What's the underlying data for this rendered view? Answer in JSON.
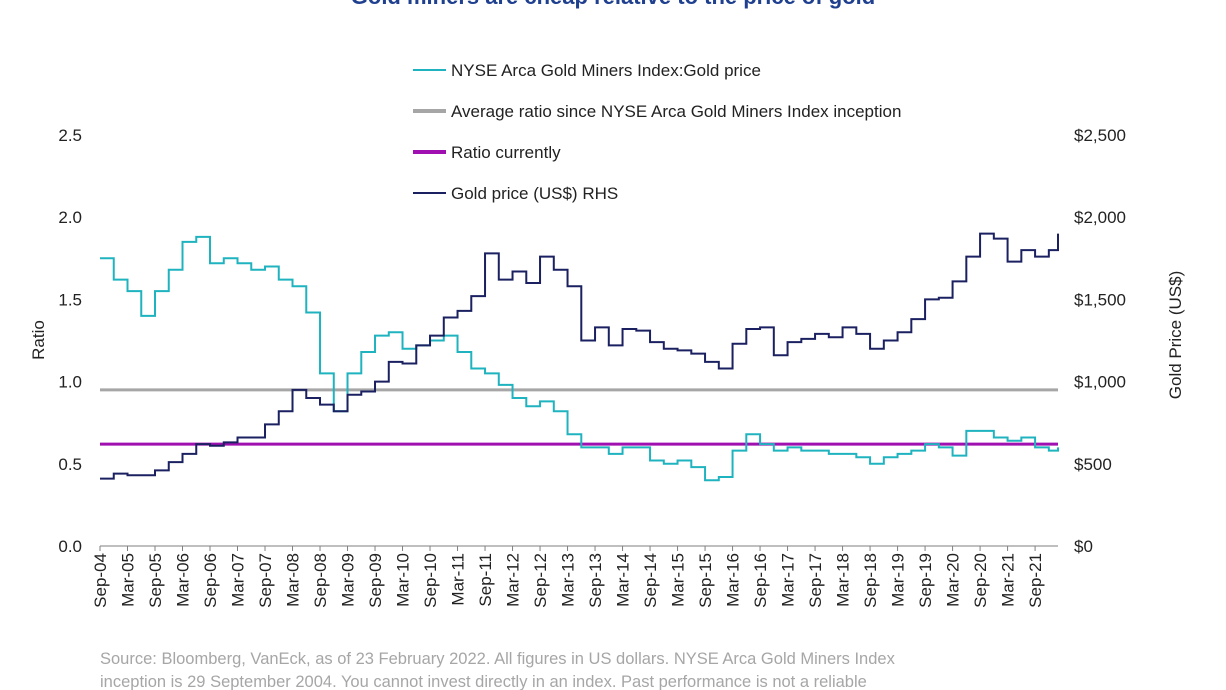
{
  "chart_data": {
    "type": "line",
    "title": "Gold miners are cheap relative to the price of gold",
    "ylabel_left": "Ratio",
    "ylabel_right": "Gold Price (US$)",
    "ylim_left": [
      0,
      2.5
    ],
    "ylim_right": [
      0,
      2500
    ],
    "yticks_left": [
      "0.0",
      "0.5",
      "1.0",
      "1.5",
      "2.0",
      "2.5"
    ],
    "yticks_right": [
      "$0",
      "$500",
      "$1,000",
      "$1,500",
      "$2,000",
      "$2,500"
    ],
    "xticks": [
      "Sep-04",
      "Mar-05",
      "Sep-05",
      "Mar-06",
      "Sep-06",
      "Mar-07",
      "Sep-07",
      "Mar-08",
      "Sep-08",
      "Mar-09",
      "Sep-09",
      "Mar-10",
      "Sep-10",
      "Mar-11",
      "Sep-11",
      "Mar-12",
      "Sep-12",
      "Mar-13",
      "Sep-13",
      "Mar-14",
      "Sep-14",
      "Mar-15",
      "Sep-15",
      "Mar-16",
      "Sep-16",
      "Mar-17",
      "Sep-17",
      "Mar-18",
      "Sep-18",
      "Mar-19",
      "Sep-19",
      "Mar-20",
      "Sep-20",
      "Mar-21",
      "Sep-21"
    ],
    "x_range": [
      "Sep-04",
      "Feb-22"
    ],
    "legend_position": "top-center",
    "series": [
      {
        "name": "NYSE Arca Gold Miners Index:Gold price",
        "axis": "left",
        "color": "#1fb3bf",
        "step": "quarter-year",
        "points": [
          [
            "Sep-04",
            1.75
          ],
          [
            "Dec-04",
            1.62
          ],
          [
            "Mar-05",
            1.55
          ],
          [
            "Jun-05",
            1.4
          ],
          [
            "Sep-05",
            1.55
          ],
          [
            "Dec-05",
            1.68
          ],
          [
            "Mar-06",
            1.85
          ],
          [
            "Jun-06",
            1.88
          ],
          [
            "Sep-06",
            1.72
          ],
          [
            "Dec-06",
            1.75
          ],
          [
            "Mar-07",
            1.72
          ],
          [
            "Jun-07",
            1.68
          ],
          [
            "Sep-07",
            1.7
          ],
          [
            "Dec-07",
            1.62
          ],
          [
            "Mar-08",
            1.58
          ],
          [
            "Jun-08",
            1.42
          ],
          [
            "Sep-08",
            1.05
          ],
          [
            "Dec-08",
            0.82
          ],
          [
            "Mar-09",
            1.05
          ],
          [
            "Jun-09",
            1.18
          ],
          [
            "Sep-09",
            1.28
          ],
          [
            "Dec-09",
            1.3
          ],
          [
            "Mar-10",
            1.2
          ],
          [
            "Jun-10",
            1.22
          ],
          [
            "Sep-10",
            1.25
          ],
          [
            "Dec-10",
            1.28
          ],
          [
            "Mar-11",
            1.18
          ],
          [
            "Jun-11",
            1.08
          ],
          [
            "Sep-11",
            1.05
          ],
          [
            "Dec-11",
            0.98
          ],
          [
            "Mar-12",
            0.9
          ],
          [
            "Jun-12",
            0.85
          ],
          [
            "Sep-12",
            0.88
          ],
          [
            "Dec-12",
            0.82
          ],
          [
            "Mar-13",
            0.68
          ],
          [
            "Jun-13",
            0.6
          ],
          [
            "Sep-13",
            0.6
          ],
          [
            "Dec-13",
            0.56
          ],
          [
            "Mar-14",
            0.6
          ],
          [
            "Jun-14",
            0.6
          ],
          [
            "Sep-14",
            0.52
          ],
          [
            "Dec-14",
            0.5
          ],
          [
            "Mar-15",
            0.52
          ],
          [
            "Jun-15",
            0.48
          ],
          [
            "Sep-15",
            0.4
          ],
          [
            "Dec-15",
            0.42
          ],
          [
            "Mar-16",
            0.58
          ],
          [
            "Jun-16",
            0.68
          ],
          [
            "Sep-16",
            0.62
          ],
          [
            "Dec-16",
            0.58
          ],
          [
            "Mar-17",
            0.6
          ],
          [
            "Jun-17",
            0.58
          ],
          [
            "Sep-17",
            0.58
          ],
          [
            "Dec-17",
            0.56
          ],
          [
            "Mar-18",
            0.56
          ],
          [
            "Jun-18",
            0.54
          ],
          [
            "Sep-18",
            0.5
          ],
          [
            "Dec-18",
            0.54
          ],
          [
            "Mar-19",
            0.56
          ],
          [
            "Jun-19",
            0.58
          ],
          [
            "Sep-19",
            0.62
          ],
          [
            "Dec-19",
            0.6
          ],
          [
            "Mar-20",
            0.55
          ],
          [
            "Jun-20",
            0.7
          ],
          [
            "Sep-20",
            0.7
          ],
          [
            "Dec-20",
            0.66
          ],
          [
            "Mar-21",
            0.64
          ],
          [
            "Jun-21",
            0.66
          ],
          [
            "Sep-21",
            0.6
          ],
          [
            "Dec-21",
            0.58
          ],
          [
            "Feb-22",
            0.6
          ]
        ]
      },
      {
        "name": "Average ratio since NYSE Arca Gold Miners Index inception",
        "axis": "left",
        "color": "#a6a6a6",
        "value": 0.95
      },
      {
        "name": "Ratio currently",
        "axis": "left",
        "color": "#a010b0",
        "value": 0.62
      },
      {
        "name": "Gold price (US$) RHS",
        "axis": "right",
        "color": "#1a2060",
        "step": "quarter-year",
        "points": [
          [
            "Sep-04",
            410
          ],
          [
            "Dec-04",
            440
          ],
          [
            "Mar-05",
            430
          ],
          [
            "Jun-05",
            430
          ],
          [
            "Sep-05",
            460
          ],
          [
            "Dec-05",
            510
          ],
          [
            "Mar-06",
            560
          ],
          [
            "Jun-06",
            620
          ],
          [
            "Sep-06",
            610
          ],
          [
            "Dec-06",
            630
          ],
          [
            "Mar-07",
            660
          ],
          [
            "Jun-07",
            660
          ],
          [
            "Sep-07",
            740
          ],
          [
            "Dec-07",
            820
          ],
          [
            "Mar-08",
            950
          ],
          [
            "Jun-08",
            900
          ],
          [
            "Sep-08",
            860
          ],
          [
            "Dec-08",
            820
          ],
          [
            "Mar-09",
            920
          ],
          [
            "Jun-09",
            940
          ],
          [
            "Sep-09",
            1000
          ],
          [
            "Dec-09",
            1120
          ],
          [
            "Mar-10",
            1110
          ],
          [
            "Jun-10",
            1220
          ],
          [
            "Sep-10",
            1280
          ],
          [
            "Dec-10",
            1390
          ],
          [
            "Mar-11",
            1430
          ],
          [
            "Jun-11",
            1520
          ],
          [
            "Sep-11",
            1780
          ],
          [
            "Dec-11",
            1620
          ],
          [
            "Mar-12",
            1670
          ],
          [
            "Jun-12",
            1600
          ],
          [
            "Sep-12",
            1760
          ],
          [
            "Dec-12",
            1680
          ],
          [
            "Mar-13",
            1580
          ],
          [
            "Jun-13",
            1250
          ],
          [
            "Sep-13",
            1330
          ],
          [
            "Dec-13",
            1220
          ],
          [
            "Mar-14",
            1320
          ],
          [
            "Jun-14",
            1310
          ],
          [
            "Sep-14",
            1240
          ],
          [
            "Dec-14",
            1200
          ],
          [
            "Mar-15",
            1190
          ],
          [
            "Jun-15",
            1170
          ],
          [
            "Sep-15",
            1120
          ],
          [
            "Dec-15",
            1080
          ],
          [
            "Mar-16",
            1230
          ],
          [
            "Jun-16",
            1320
          ],
          [
            "Sep-16",
            1330
          ],
          [
            "Dec-16",
            1160
          ],
          [
            "Mar-17",
            1240
          ],
          [
            "Jun-17",
            1260
          ],
          [
            "Sep-17",
            1290
          ],
          [
            "Dec-17",
            1270
          ],
          [
            "Mar-18",
            1330
          ],
          [
            "Jun-18",
            1290
          ],
          [
            "Sep-18",
            1200
          ],
          [
            "Dec-18",
            1250
          ],
          [
            "Mar-19",
            1300
          ],
          [
            "Jun-19",
            1380
          ],
          [
            "Sep-19",
            1500
          ],
          [
            "Dec-19",
            1510
          ],
          [
            "Mar-20",
            1610
          ],
          [
            "Jun-20",
            1760
          ],
          [
            "Sep-20",
            1900
          ],
          [
            "Dec-20",
            1870
          ],
          [
            "Mar-21",
            1730
          ],
          [
            "Jun-21",
            1800
          ],
          [
            "Sep-21",
            1760
          ],
          [
            "Dec-21",
            1800
          ],
          [
            "Feb-22",
            1900
          ]
        ]
      }
    ]
  },
  "footer": {
    "source_line1": "Source: Bloomberg, VanEck, as of 23 February 2022. All figures in US dollars. NYSE Arca Gold Miners Index",
    "source_line2": "inception is 29 September 2004. You cannot invest directly in an index. Past performance is not a reliable"
  }
}
